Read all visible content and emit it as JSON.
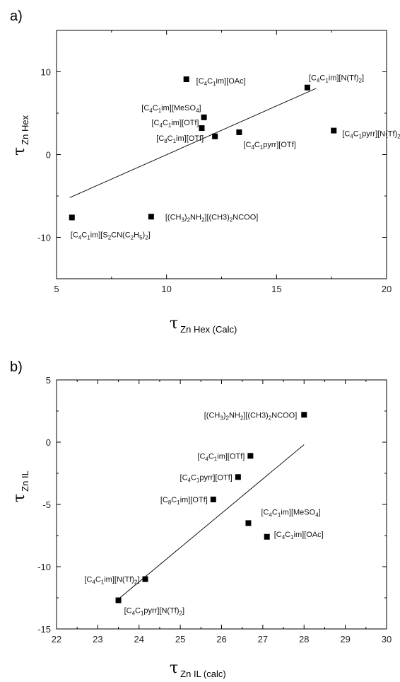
{
  "chart_data": [
    {
      "type": "scatter",
      "panel_label": "a)",
      "xlabel_main": "τ",
      "xlabel_sub": "Zn Hex (Calc)",
      "ylabel_main": "τ",
      "ylabel_sub": "Zn Hex",
      "xlim": [
        5,
        20
      ],
      "ylim": [
        -15,
        15
      ],
      "xticks": [
        5,
        10,
        15,
        20
      ],
      "yticks": [
        -10,
        0,
        10
      ],
      "fit_line": {
        "x": [
          5.6,
          16.8
        ],
        "y": [
          -5.2,
          8.0
        ]
      },
      "points": [
        {
          "x": 10.9,
          "y": 9.1,
          "label": [
            [
              "[C"
            ],
            [
              "4",
              "s"
            ],
            [
              "C"
            ],
            [
              "1",
              "s"
            ],
            [
              "im][OAc]"
            ]
          ]
        },
        {
          "x": 16.4,
          "y": 8.1,
          "label": [
            [
              "[C"
            ],
            [
              "4",
              "s"
            ],
            [
              "C"
            ],
            [
              "1",
              "s"
            ],
            [
              "im][N(Tf)"
            ],
            [
              "2",
              "s"
            ],
            [
              "]"
            ]
          ]
        },
        {
          "x": 11.7,
          "y": 4.5,
          "label": [
            [
              "[C"
            ],
            [
              "4",
              "s"
            ],
            [
              "C"
            ],
            [
              "1",
              "s"
            ],
            [
              "im][MeSO"
            ],
            [
              "4",
              "s"
            ],
            [
              "]"
            ]
          ]
        },
        {
          "x": 11.6,
          "y": 3.2,
          "label": [
            [
              "[C"
            ],
            [
              "4",
              "s"
            ],
            [
              "C"
            ],
            [
              "1",
              "s"
            ],
            [
              "im][OTf]"
            ]
          ]
        },
        {
          "x": 12.2,
          "y": 2.2,
          "label": [
            [
              "[C"
            ],
            [
              "8",
              "s"
            ],
            [
              "C"
            ],
            [
              "1",
              "s"
            ],
            [
              "im][OTf]"
            ]
          ]
        },
        {
          "x": 13.3,
          "y": 2.7,
          "label": [
            [
              "[C"
            ],
            [
              "4",
              "s"
            ],
            [
              "C"
            ],
            [
              "1",
              "s"
            ],
            [
              "pyrr][OTf]"
            ]
          ]
        },
        {
          "x": 17.6,
          "y": 2.9,
          "label": [
            [
              "[C"
            ],
            [
              "4",
              "s"
            ],
            [
              "C"
            ],
            [
              "1",
              "s"
            ],
            [
              "pyrr][N(Tf)"
            ],
            [
              "2",
              "s"
            ],
            [
              "]"
            ]
          ]
        },
        {
          "x": 9.3,
          "y": -7.5,
          "label": [
            [
              "[(CH"
            ],
            [
              "3",
              "s"
            ],
            [
              ")"
            ],
            [
              "2",
              "s"
            ],
            [
              "NH"
            ],
            [
              "2",
              "s"
            ],
            [
              "][(CH3)"
            ],
            [
              "2",
              "s"
            ],
            [
              "NCOO]"
            ]
          ]
        },
        {
          "x": 5.7,
          "y": -7.6,
          "label": [
            [
              "[C"
            ],
            [
              "4",
              "s"
            ],
            [
              "C"
            ],
            [
              "1",
              "s"
            ],
            [
              "im][S"
            ],
            [
              "2",
              "s"
            ],
            [
              "CN(C"
            ],
            [
              "2",
              "s"
            ],
            [
              "H"
            ],
            [
              "5",
              "s"
            ],
            [
              ")"
            ],
            [
              "2",
              "s"
            ],
            [
              "]"
            ]
          ]
        }
      ]
    },
    {
      "type": "scatter",
      "panel_label": "b)",
      "xlabel_main": "τ",
      "xlabel_sub": "Zn IL (calc)",
      "ylabel_main": "τ",
      "ylabel_sub": "Zn IL",
      "xlim": [
        22,
        30
      ],
      "ylim": [
        -15,
        5
      ],
      "xticks": [
        22,
        23,
        24,
        25,
        26,
        27,
        28,
        29,
        30
      ],
      "yticks": [
        -15,
        -10,
        -5,
        0,
        5
      ],
      "fit_line": {
        "x": [
          23.5,
          28.0
        ],
        "y": [
          -12.6,
          -0.2
        ]
      },
      "points": [
        {
          "x": 28.0,
          "y": 2.2,
          "label": [
            [
              "[(CH"
            ],
            [
              "3",
              "s"
            ],
            [
              ")"
            ],
            [
              "2",
              "s"
            ],
            [
              "NH"
            ],
            [
              "2",
              "s"
            ],
            [
              "][(CH3)"
            ],
            [
              "2",
              "s"
            ],
            [
              "NCOO]"
            ]
          ]
        },
        {
          "x": 26.7,
          "y": -1.1,
          "label": [
            [
              "[C"
            ],
            [
              "4",
              "s"
            ],
            [
              "C"
            ],
            [
              "1",
              "s"
            ],
            [
              "im][OTf]"
            ]
          ]
        },
        {
          "x": 26.4,
          "y": -2.8,
          "label": [
            [
              "[C"
            ],
            [
              "4",
              "s"
            ],
            [
              "C"
            ],
            [
              "1",
              "s"
            ],
            [
              "pyrr][OTf]"
            ]
          ]
        },
        {
          "x": 25.8,
          "y": -4.6,
          "label": [
            [
              "[C"
            ],
            [
              "8",
              "s"
            ],
            [
              "C"
            ],
            [
              "1",
              "s"
            ],
            [
              "im][OTf]"
            ]
          ]
        },
        {
          "x": 26.65,
          "y": -6.5,
          "label": [
            [
              "[C"
            ],
            [
              "4",
              "s"
            ],
            [
              "C"
            ],
            [
              "1",
              "s"
            ],
            [
              "im][MeSO"
            ],
            [
              "4",
              "s"
            ],
            [
              "]"
            ]
          ]
        },
        {
          "x": 27.1,
          "y": -7.6,
          "label": [
            [
              "[C"
            ],
            [
              "4",
              "s"
            ],
            [
              "C"
            ],
            [
              "1",
              "s"
            ],
            [
              "im][OAc]"
            ]
          ]
        },
        {
          "x": 24.15,
          "y": -11.0,
          "label": [
            [
              "[C"
            ],
            [
              "4",
              "s"
            ],
            [
              "C"
            ],
            [
              "1",
              "s"
            ],
            [
              "im][N(Tf)"
            ],
            [
              "2",
              "s"
            ],
            [
              "]"
            ]
          ]
        },
        {
          "x": 23.5,
          "y": -12.7,
          "label": [
            [
              "[C"
            ],
            [
              "4",
              "s"
            ],
            [
              "C"
            ],
            [
              "1",
              "s"
            ],
            [
              "pyrr][N(Tf)"
            ],
            [
              "2",
              "s"
            ],
            [
              "]"
            ]
          ]
        }
      ]
    }
  ]
}
